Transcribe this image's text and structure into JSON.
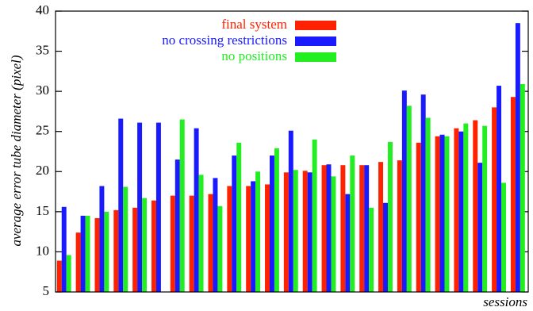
{
  "chart_data": {
    "type": "bar",
    "x_label": "sessions",
    "y_label": "average error tube diameter (pixel)",
    "categories": [
      null,
      null,
      null,
      null,
      null,
      null,
      null,
      null,
      null,
      null,
      null,
      null,
      null,
      null,
      null,
      null,
      null,
      null,
      null,
      null,
      null,
      null,
      null,
      null,
      null
    ],
    "series": [
      {
        "name": "final system",
        "color": "#ff2200",
        "values": [
          8.9,
          12.4,
          14.2,
          15.2,
          15.5,
          16.4,
          17.0,
          17.0,
          17.2,
          18.2,
          18.2,
          18.4,
          19.9,
          20.1,
          20.8,
          20.8,
          20.8,
          21.2,
          21.4,
          23.6,
          24.4,
          25.4,
          26.4,
          28.0,
          29.3
        ]
      },
      {
        "name": "no crossing restrictions",
        "color": "#1a1aff",
        "values": [
          15.6,
          14.5,
          18.2,
          26.6,
          26.1,
          26.1,
          21.5,
          25.4,
          19.2,
          22.0,
          18.8,
          22.0,
          25.1,
          19.9,
          20.9,
          17.2,
          20.8,
          16.1,
          30.1,
          29.6,
          24.6,
          25.0,
          21.1,
          30.7,
          38.5
        ]
      },
      {
        "name": "no positions",
        "color": "#22ee22",
        "values": [
          9.6,
          14.5,
          15.0,
          18.1,
          16.7,
          null,
          26.5,
          19.6,
          15.7,
          23.6,
          20.0,
          22.9,
          20.2,
          24.0,
          19.4,
          22.0,
          15.5,
          23.7,
          28.2,
          26.7,
          24.4,
          26.0,
          25.7,
          18.6,
          30.9
        ]
      }
    ],
    "ylim": [
      5,
      40
    ],
    "yticks": [
      5,
      10,
      15,
      20,
      25,
      30,
      35,
      40
    ]
  }
}
